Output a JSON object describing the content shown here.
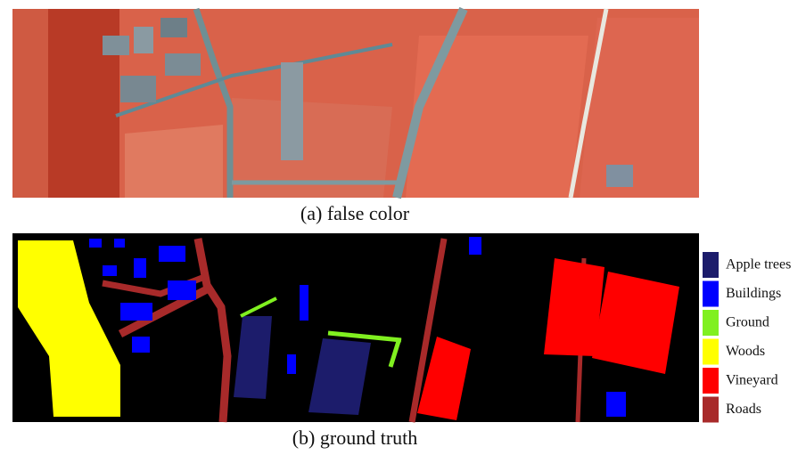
{
  "figure": {
    "caption_a": "(a) false color",
    "caption_b": "(b) ground truth",
    "legend": [
      {
        "label": "Apple trees",
        "color": "#1c1c6b"
      },
      {
        "label": "Buildings",
        "color": "#0000ff"
      },
      {
        "label": "Ground",
        "color": "#80f020"
      },
      {
        "label": "Woods",
        "color": "#ffff00"
      },
      {
        "label": "Vineyard",
        "color": "#ff0000"
      },
      {
        "label": "Roads",
        "color": "#a82a2a"
      }
    ]
  }
}
